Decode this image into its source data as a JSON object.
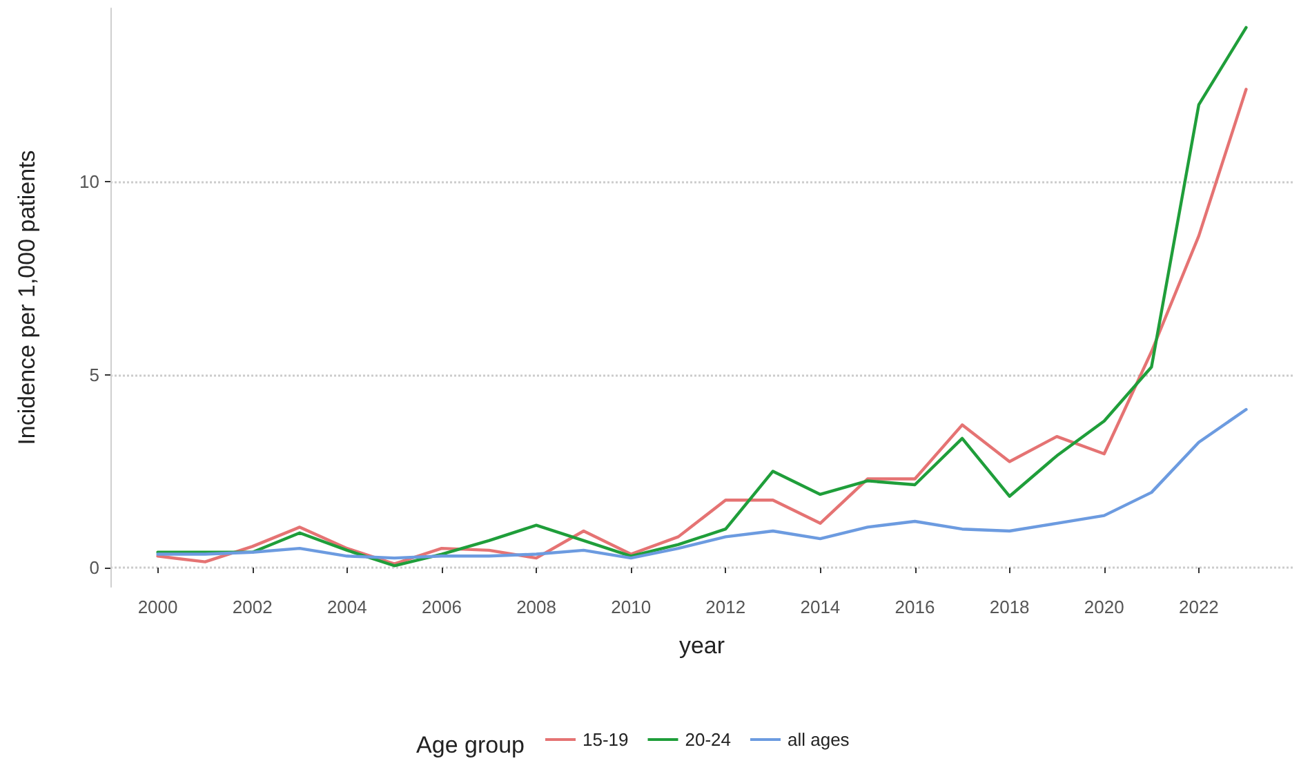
{
  "chart_data": {
    "type": "line",
    "xlabel": "year",
    "ylabel": "Incidence per 1,000 patients",
    "legend_title": "Age group",
    "legend": "bottom",
    "grid": "y",
    "marker": "none",
    "line_style": "solid",
    "x": [
      2000,
      2001,
      2002,
      2003,
      2004,
      2005,
      2006,
      2007,
      2008,
      2009,
      2010,
      2011,
      2012,
      2013,
      2014,
      2015,
      2016,
      2017,
      2018,
      2019,
      2020,
      2021,
      2022,
      2023
    ],
    "xlim": [
      1999,
      2024
    ],
    "xticks": [
      2000,
      2002,
      2004,
      2006,
      2008,
      2010,
      2012,
      2014,
      2016,
      2018,
      2020,
      2022
    ],
    "ylim": [
      -0.5,
      14.5
    ],
    "yticks": [
      0,
      5,
      10
    ],
    "series": [
      {
        "name": "15-19",
        "color": "#e57373",
        "values": [
          0.3,
          0.15,
          0.55,
          1.05,
          0.5,
          0.1,
          0.5,
          0.45,
          0.25,
          0.95,
          0.35,
          0.8,
          1.75,
          1.75,
          1.15,
          2.3,
          2.3,
          3.7,
          2.75,
          3.4,
          2.95,
          5.6,
          8.6,
          12.4
        ]
      },
      {
        "name": "20-24",
        "color": "#1f9e3a",
        "values": [
          0.4,
          0.4,
          0.4,
          0.9,
          0.45,
          0.05,
          0.35,
          0.7,
          1.1,
          0.7,
          0.3,
          0.6,
          1.0,
          2.5,
          1.9,
          2.25,
          2.15,
          3.35,
          1.85,
          2.9,
          3.8,
          5.2,
          12.0,
          14.0
        ]
      },
      {
        "name": "all ages",
        "color": "#6c9be0",
        "values": [
          0.35,
          0.35,
          0.4,
          0.5,
          0.3,
          0.25,
          0.3,
          0.3,
          0.35,
          0.45,
          0.25,
          0.5,
          0.8,
          0.95,
          0.75,
          1.05,
          1.2,
          1.0,
          0.95,
          1.15,
          1.35,
          1.95,
          3.25,
          4.1
        ]
      }
    ]
  }
}
